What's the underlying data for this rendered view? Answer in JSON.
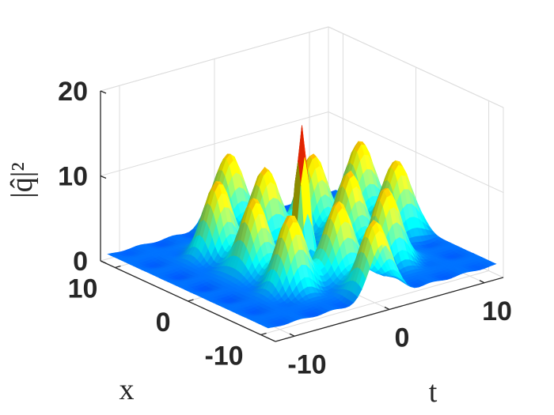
{
  "chart_data": {
    "type": "surface",
    "colormap": "jet",
    "grid": true,
    "x_label": "x",
    "t_label": "t",
    "z_label": "|q̂|²",
    "x_ticks": [
      "-10",
      "0",
      "10"
    ],
    "t_ticks": [
      "-10",
      "0",
      "10"
    ],
    "z_ticks": [
      "0",
      "10",
      "20"
    ],
    "x_range": [
      -12,
      12
    ],
    "t_range": [
      -12,
      12
    ],
    "z_range": [
      0,
      20
    ],
    "baseline": 1.2,
    "central_peak": {
      "t": 0,
      "x": 0,
      "height": 17.5
    },
    "lattice_peaks": [
      {
        "t": -5,
        "x": 5,
        "height": 10
      },
      {
        "t": 0,
        "x": 10,
        "height": 10
      },
      {
        "t": 0,
        "x": 5,
        "height": 10
      },
      {
        "t": 5,
        "x": 5,
        "height": 10
      },
      {
        "t": 10,
        "x": 5,
        "height": 10
      },
      {
        "t": -5,
        "x": 0,
        "height": 10
      },
      {
        "t": 5,
        "x": 0,
        "height": 10
      },
      {
        "t": 10,
        "x": 0,
        "height": 10
      },
      {
        "t": -5,
        "x": -5,
        "height": 10
      },
      {
        "t": 0,
        "x": -5,
        "height": 10
      },
      {
        "t": 5,
        "x": -5,
        "height": 10
      },
      {
        "t": 0,
        "x": -10,
        "height": 10
      }
    ]
  }
}
